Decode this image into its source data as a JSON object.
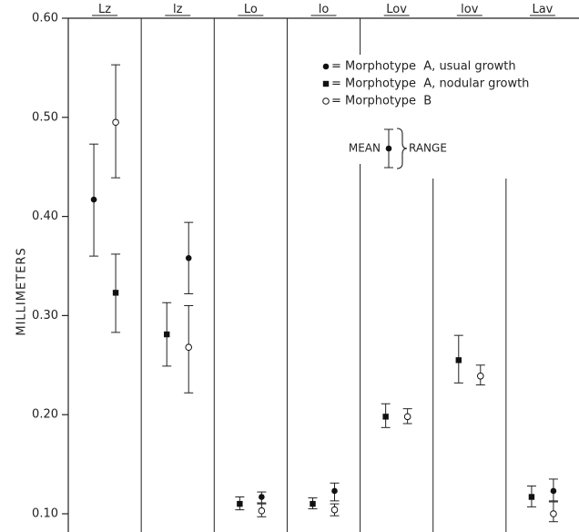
{
  "chart_data": {
    "type": "scatter",
    "ylabel": "MILLIMETERS",
    "ylim": [
      0.1,
      0.6
    ],
    "yticks": [
      {
        "value": 0.1,
        "label": "0.10"
      },
      {
        "value": 0.2,
        "label": "0.20"
      },
      {
        "value": 0.3,
        "label": "0.30"
      },
      {
        "value": 0.4,
        "label": "0.40"
      },
      {
        "value": 0.5,
        "label": "0.50"
      },
      {
        "value": 0.6,
        "label": "0.60"
      }
    ],
    "categories": [
      "Lz",
      "lz",
      "Lo",
      "lo",
      "Lov",
      "lov",
      "Lav"
    ],
    "legend": {
      "placement": "top-right",
      "entries": [
        {
          "marker": "filled-circle",
          "label": "= Morphotype  A, usual growth"
        },
        {
          "marker": "filled-square",
          "label": "= Morphotype  A, nodular growth"
        },
        {
          "marker": "open-circle",
          "label": "= Morphotype  B"
        }
      ],
      "key": {
        "mean_label": "MEAN",
        "range_label": "RANGE"
      }
    },
    "series": [
      {
        "marker": "filled-circle",
        "points": [
          {
            "category": "Lz",
            "offset": -1,
            "mean": 0.417,
            "min": 0.36,
            "max": 0.473
          },
          {
            "category": "lz",
            "offset": 1,
            "mean": 0.358,
            "min": 0.322,
            "max": 0.394
          },
          {
            "category": "Lo",
            "offset": 1,
            "mean": 0.117,
            "min": 0.111,
            "max": 0.122
          },
          {
            "category": "lo",
            "offset": 1,
            "mean": 0.123,
            "min": 0.113,
            "max": 0.131
          },
          {
            "category": "Lav",
            "offset": 1,
            "mean": 0.123,
            "min": 0.113,
            "max": 0.135
          }
        ]
      },
      {
        "marker": "filled-square",
        "points": [
          {
            "category": "Lz",
            "offset": 1,
            "mean": 0.323,
            "min": 0.283,
            "max": 0.362
          },
          {
            "category": "lz",
            "offset": -1,
            "mean": 0.281,
            "min": 0.249,
            "max": 0.313
          },
          {
            "category": "Lo",
            "offset": -1,
            "mean": 0.11,
            "min": 0.104,
            "max": 0.117
          },
          {
            "category": "lo",
            "offset": -1,
            "mean": 0.11,
            "min": 0.105,
            "max": 0.116
          },
          {
            "category": "Lov",
            "offset": -1,
            "mean": 0.198,
            "min": 0.187,
            "max": 0.211
          },
          {
            "category": "lov",
            "offset": -1,
            "mean": 0.255,
            "min": 0.232,
            "max": 0.28
          },
          {
            "category": "Lav",
            "offset": -1,
            "mean": 0.117,
            "min": 0.107,
            "max": 0.128
          }
        ]
      },
      {
        "marker": "open-circle",
        "points": [
          {
            "category": "Lz",
            "offset": 1,
            "mean": 0.495,
            "min": 0.439,
            "max": 0.553
          },
          {
            "category": "lz",
            "offset": 1,
            "mean": 0.268,
            "min": 0.222,
            "max": 0.31
          },
          {
            "category": "Lo",
            "offset": 1,
            "mean": 0.103,
            "min": 0.097,
            "max": 0.11
          },
          {
            "category": "lo",
            "offset": 1,
            "mean": 0.104,
            "min": 0.098,
            "max": 0.11
          },
          {
            "category": "Lov",
            "offset": 1,
            "mean": 0.198,
            "min": 0.191,
            "max": 0.206
          },
          {
            "category": "lov",
            "offset": 1,
            "mean": 0.239,
            "min": 0.23,
            "max": 0.25
          },
          {
            "category": "Lav",
            "offset": 1,
            "mean": 0.1,
            "min": 0.092,
            "max": 0.112
          }
        ]
      }
    ]
  }
}
